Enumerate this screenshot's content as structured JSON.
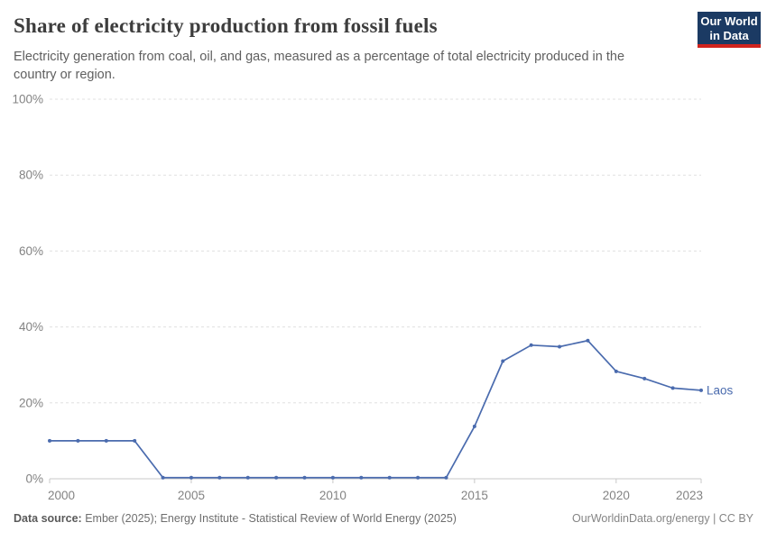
{
  "header": {
    "title": "Share of electricity production from fossil fuels",
    "subtitle": "Electricity generation from coal, oil, and gas, measured as a percentage of total electricity produced in the country or region.",
    "logo": {
      "line1": "Our World",
      "line2": "in Data",
      "bg_color": "#1b3a63",
      "stripe_color": "#d0231d"
    }
  },
  "chart_data": {
    "type": "line",
    "title": "Share of electricity production from fossil fuels",
    "xlabel": "",
    "ylabel": "",
    "xlim": [
      2000,
      2023
    ],
    "ylim": [
      0,
      100
    ],
    "x_ticks": [
      2000,
      2005,
      2010,
      2015,
      2020,
      2023
    ],
    "y_ticks": [
      0,
      20,
      40,
      60,
      80,
      100
    ],
    "y_tick_suffix": "%",
    "grid": "horizontal-dashed",
    "legend_position": "end-of-line-label",
    "series": [
      {
        "name": "Laos",
        "color": "#4a6bae",
        "x": [
          2000,
          2001,
          2002,
          2003,
          2004,
          2005,
          2006,
          2007,
          2008,
          2009,
          2010,
          2011,
          2012,
          2013,
          2014,
          2015,
          2016,
          2017,
          2018,
          2019,
          2020,
          2021,
          2022,
          2023
        ],
        "values": [
          10,
          10,
          10,
          10,
          0.3,
          0.3,
          0.3,
          0.3,
          0.3,
          0.3,
          0.3,
          0.3,
          0.3,
          0.3,
          0.3,
          13.8,
          31,
          35.2,
          34.8,
          36.4,
          28.3,
          26.4,
          23.9,
          23.3
        ]
      }
    ]
  },
  "footer": {
    "datasource_label": "Data source:",
    "datasource_text": " Ember (2025); Energy Institute - Statistical Review of World Energy (2025)",
    "credit": "OurWorldinData.org/energy | CC BY"
  }
}
